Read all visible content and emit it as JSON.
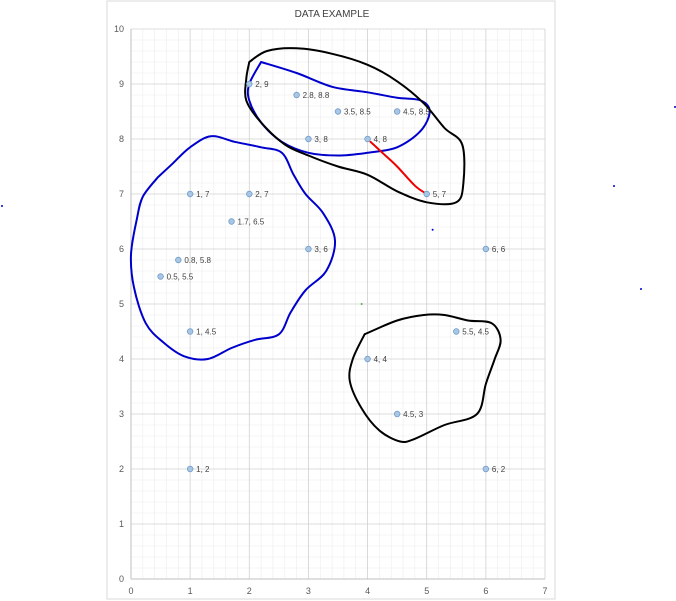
{
  "chart_data": {
    "type": "scatter",
    "title": "DATA EXAMPLE",
    "xlabel": "",
    "ylabel": "",
    "xlim": [
      0,
      7
    ],
    "ylim": [
      0,
      10
    ],
    "x_ticks": [
      "0",
      "1",
      "2",
      "3",
      "4",
      "5",
      "6",
      "7"
    ],
    "y_ticks": [
      "0",
      "1",
      "2",
      "3",
      "4",
      "5",
      "6",
      "7",
      "8",
      "9",
      "10"
    ],
    "grid": "major and minor",
    "legend": "none",
    "marker_color": "#a9c7e3",
    "marker_edge_color": "#6f9ccb",
    "points": [
      {
        "x": 2,
        "y": 9,
        "label": "2, 9"
      },
      {
        "x": 2.8,
        "y": 8.8,
        "label": "2.8, 8.8"
      },
      {
        "x": 3.5,
        "y": 8.5,
        "label": "3.5, 8.5"
      },
      {
        "x": 4.5,
        "y": 8.5,
        "label": "4.5, 8.5"
      },
      {
        "x": 3,
        "y": 8,
        "label": "3, 8"
      },
      {
        "x": 4,
        "y": 8,
        "label": "4, 8"
      },
      {
        "x": 1,
        "y": 7,
        "label": "1, 7"
      },
      {
        "x": 2,
        "y": 7,
        "label": "2, 7"
      },
      {
        "x": 5,
        "y": 7,
        "label": "5, 7"
      },
      {
        "x": 1.7,
        "y": 6.5,
        "label": "1.7, 6.5"
      },
      {
        "x": 3,
        "y": 6,
        "label": "3, 6"
      },
      {
        "x": 6,
        "y": 6,
        "label": "6, 6"
      },
      {
        "x": 0.8,
        "y": 5.8,
        "label": "0.8, 5.8"
      },
      {
        "x": 0.5,
        "y": 5.5,
        "label": "0.5, 5.5"
      },
      {
        "x": 1,
        "y": 4.5,
        "label": "1, 4.5"
      },
      {
        "x": 5.5,
        "y": 4.5,
        "label": "5.5, 4.5"
      },
      {
        "x": 4,
        "y": 4,
        "label": "4, 4"
      },
      {
        "x": 4.5,
        "y": 3,
        "label": "4.5, 3"
      },
      {
        "x": 1,
        "y": 2,
        "label": "1, 2"
      },
      {
        "x": 6,
        "y": 2,
        "label": "6, 2"
      }
    ],
    "annotations": [
      {
        "type": "hand-drawn-loop",
        "color": "#0000cc",
        "path": [
          [
            2.2,
            9.4
          ],
          [
            2.8,
            9.2
          ],
          [
            3.4,
            8.95
          ],
          [
            4.0,
            8.85
          ],
          [
            4.5,
            8.75
          ],
          [
            4.9,
            8.7
          ],
          [
            5.05,
            8.5
          ],
          [
            4.9,
            8.15
          ],
          [
            4.5,
            7.85
          ],
          [
            4.0,
            7.75
          ],
          [
            3.5,
            7.7
          ],
          [
            3.0,
            7.75
          ],
          [
            2.55,
            7.95
          ],
          [
            2.2,
            8.3
          ],
          [
            2.0,
            8.7
          ],
          [
            2.0,
            9.0
          ],
          [
            2.2,
            9.4
          ]
        ]
      },
      {
        "type": "hand-drawn-loop",
        "color": "#000000",
        "path": [
          [
            2.0,
            9.4
          ],
          [
            2.3,
            9.6
          ],
          [
            2.8,
            9.65
          ],
          [
            3.4,
            9.55
          ],
          [
            4.0,
            9.35
          ],
          [
            4.5,
            9.05
          ],
          [
            4.95,
            8.65
          ],
          [
            5.3,
            8.2
          ],
          [
            5.6,
            7.9
          ],
          [
            5.62,
            7.2
          ],
          [
            5.5,
            6.85
          ],
          [
            5.0,
            6.85
          ],
          [
            4.5,
            7.05
          ],
          [
            4.0,
            7.35
          ],
          [
            3.5,
            7.5
          ],
          [
            3.0,
            7.7
          ],
          [
            2.6,
            7.9
          ],
          [
            2.2,
            8.3
          ],
          [
            1.95,
            8.7
          ],
          [
            1.95,
            9.1
          ],
          [
            2.0,
            9.4
          ]
        ]
      },
      {
        "type": "hand-drawn-loop",
        "color": "#0000cc",
        "path": [
          [
            0.45,
            7.3
          ],
          [
            0.7,
            7.55
          ],
          [
            1.0,
            7.85
          ],
          [
            1.35,
            8.05
          ],
          [
            1.75,
            7.95
          ],
          [
            2.2,
            7.85
          ],
          [
            2.55,
            7.75
          ],
          [
            2.75,
            7.35
          ],
          [
            2.95,
            7.0
          ],
          [
            3.25,
            6.65
          ],
          [
            3.45,
            6.15
          ],
          [
            3.3,
            5.6
          ],
          [
            2.95,
            5.25
          ],
          [
            2.7,
            4.85
          ],
          [
            2.5,
            4.45
          ],
          [
            2.1,
            4.35
          ],
          [
            1.7,
            4.2
          ],
          [
            1.3,
            4.0
          ],
          [
            0.9,
            4.05
          ],
          [
            0.55,
            4.3
          ],
          [
            0.25,
            4.65
          ],
          [
            0.05,
            5.3
          ],
          [
            0.0,
            5.9
          ],
          [
            0.1,
            6.55
          ],
          [
            0.2,
            6.95
          ],
          [
            0.45,
            7.3
          ]
        ]
      },
      {
        "type": "hand-drawn-loop",
        "color": "#000000",
        "path": [
          [
            3.95,
            4.45
          ],
          [
            4.5,
            4.7
          ],
          [
            4.95,
            4.8
          ],
          [
            5.3,
            4.8
          ],
          [
            5.7,
            4.7
          ],
          [
            6.1,
            4.65
          ],
          [
            6.25,
            4.35
          ],
          [
            6.15,
            4.0
          ],
          [
            6.0,
            3.55
          ],
          [
            5.85,
            3.0
          ],
          [
            5.3,
            2.8
          ],
          [
            4.8,
            2.55
          ],
          [
            4.55,
            2.5
          ],
          [
            4.2,
            2.7
          ],
          [
            3.9,
            3.1
          ],
          [
            3.7,
            3.6
          ],
          [
            3.75,
            4.0
          ],
          [
            3.95,
            4.45
          ]
        ]
      },
      {
        "type": "hand-drawn-stroke",
        "color": "#ee0000",
        "path": [
          [
            4.05,
            7.95
          ],
          [
            4.25,
            7.75
          ],
          [
            4.5,
            7.5
          ],
          [
            4.8,
            7.15
          ],
          [
            5.0,
            7.0
          ]
        ]
      }
    ],
    "stray_dots": [
      {
        "x": 5.1,
        "y": 6.35,
        "color": "#0000cc"
      },
      {
        "x": 3.9,
        "y": 5.0,
        "color": "#55aa55"
      }
    ]
  }
}
